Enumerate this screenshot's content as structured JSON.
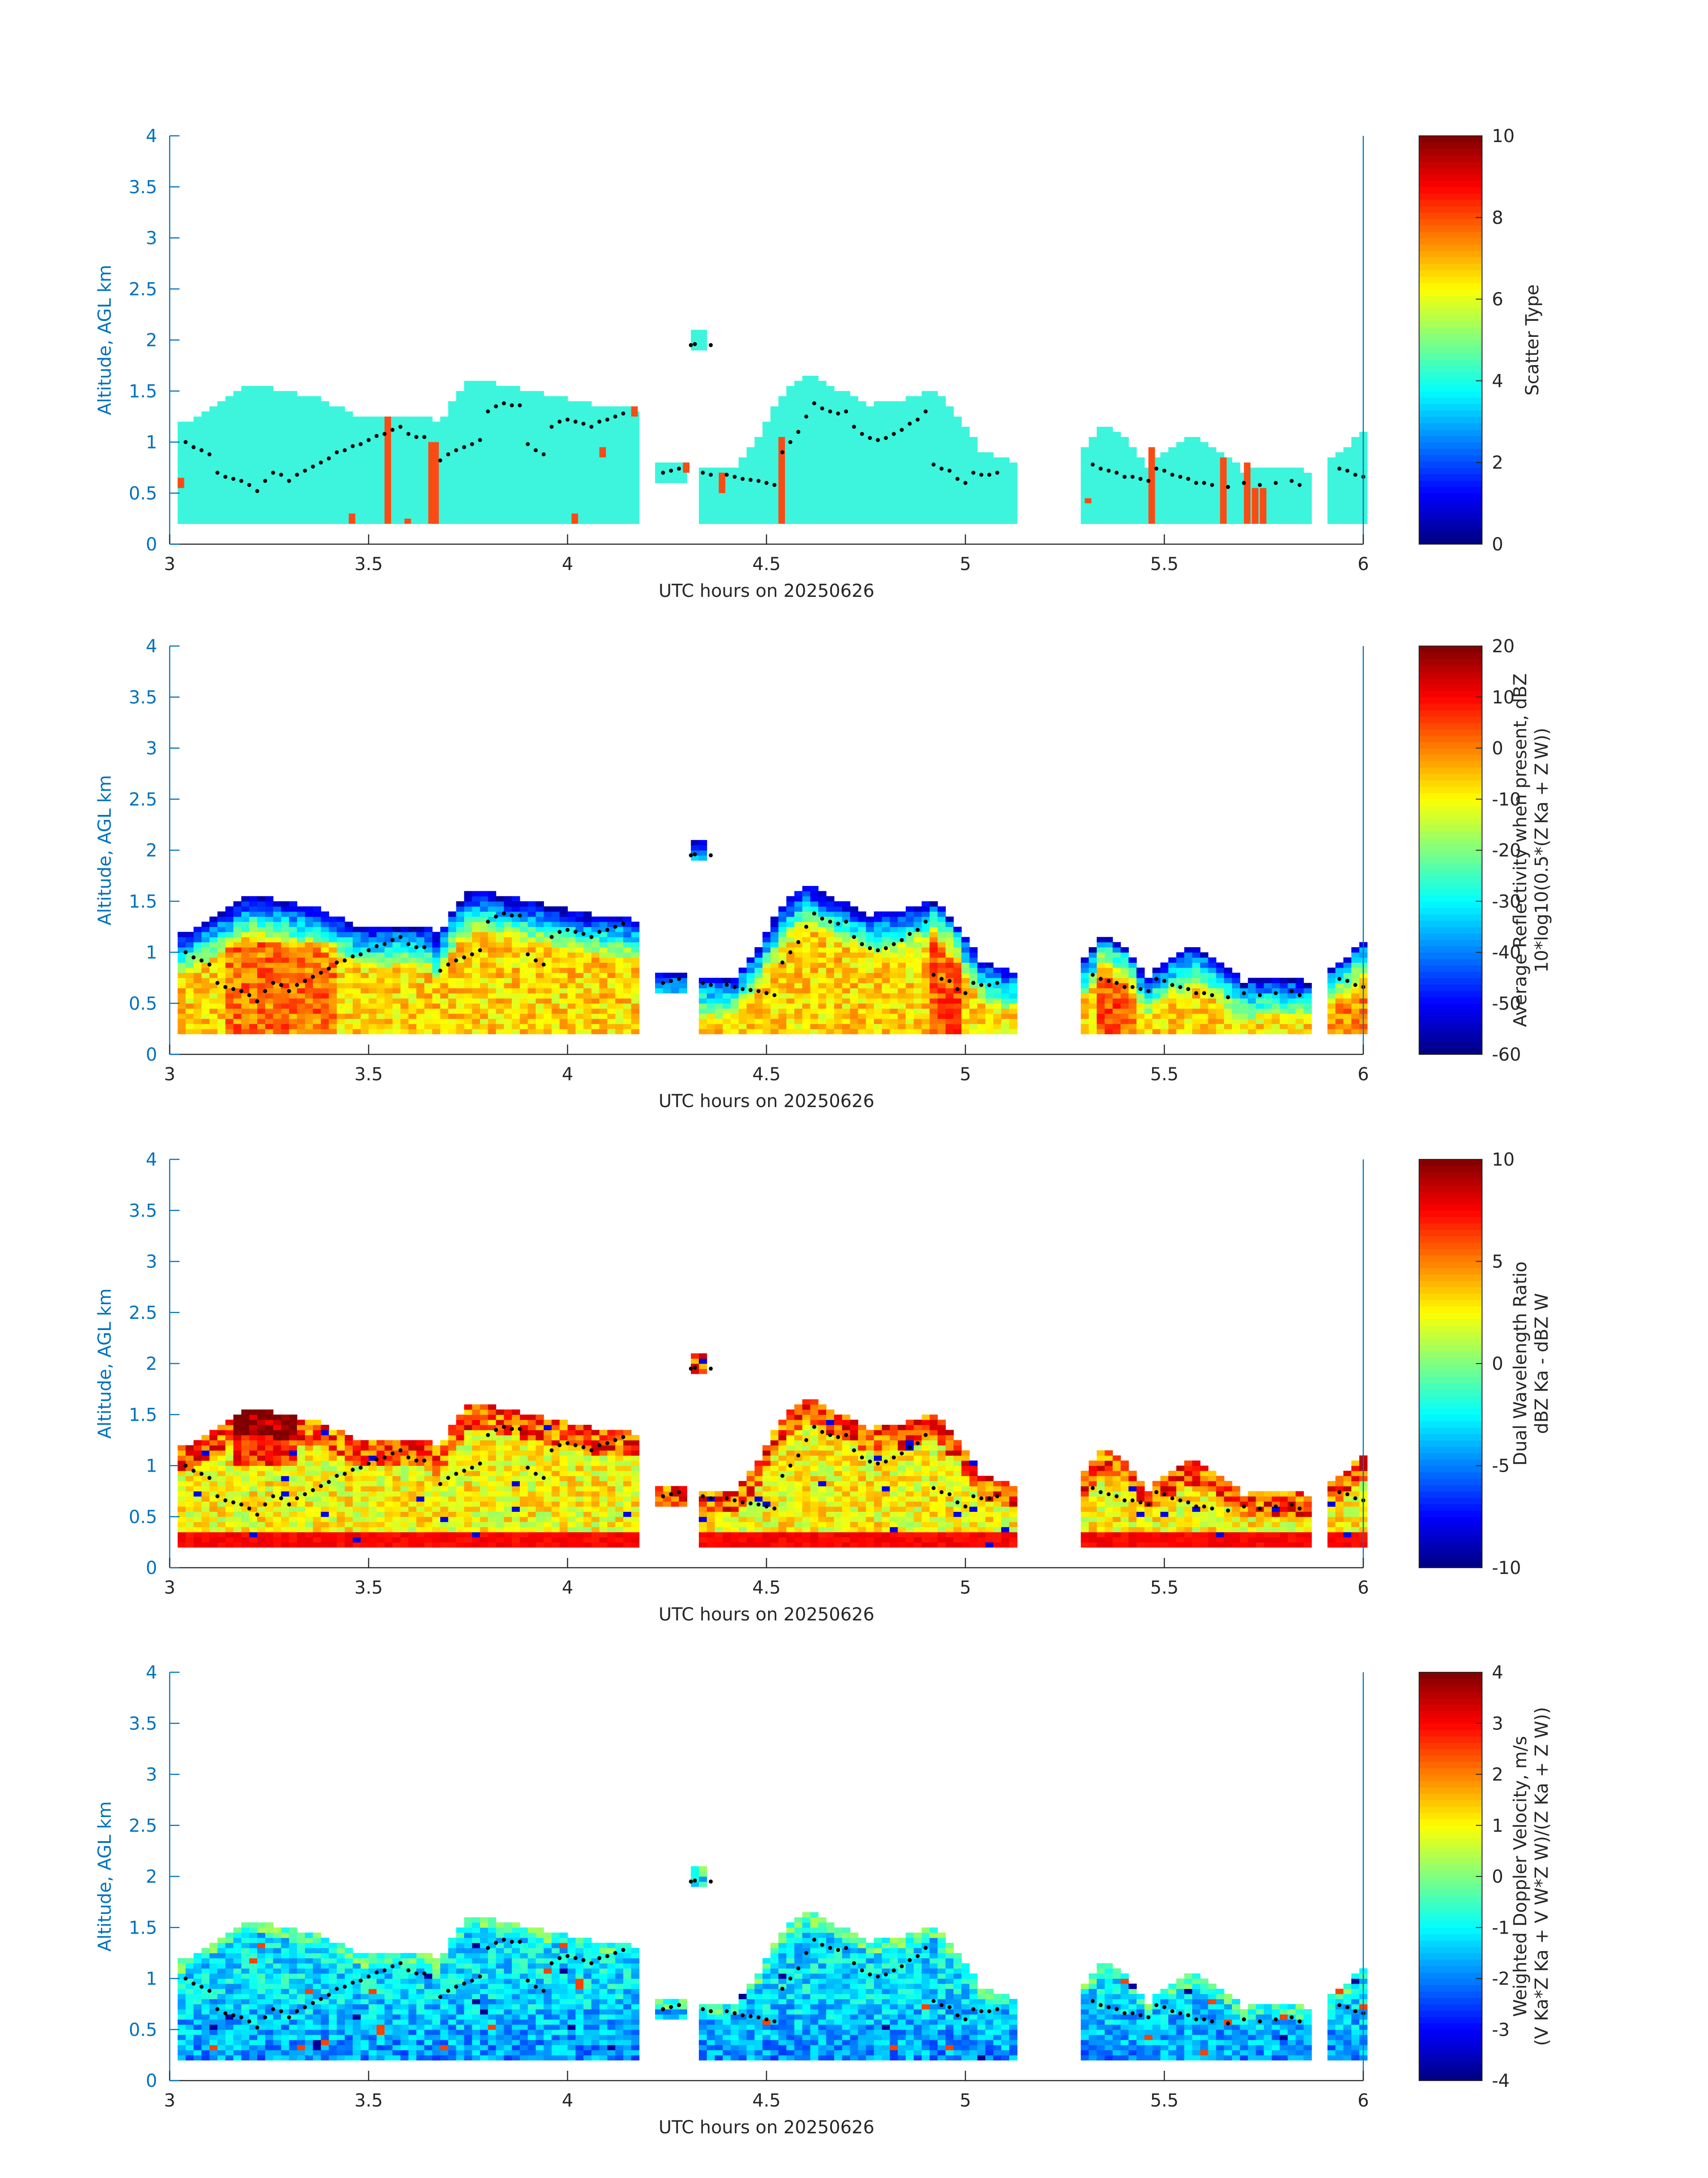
{
  "colors": {
    "axis": "#0072BD",
    "text": "#262626",
    "cloud_mask_cyan": "#3CF5DC",
    "scatter_orange": "#FA4B14",
    "background": "#ffffff",
    "marker": "#000000"
  },
  "chart_data": [
    {
      "type": "heatmap",
      "title": "",
      "xlabel": "UTC hours on 20250626",
      "ylabel": "Altitude, AGL km",
      "xlim": [
        3,
        6
      ],
      "ylim": [
        0,
        4
      ],
      "x_ticks": [
        "3",
        "3.5",
        "4",
        "4.5",
        "5",
        "5.5",
        "6"
      ],
      "y_ticks": [
        "0",
        "0.5",
        "1",
        "1.5",
        "2",
        "2.5",
        "3",
        "3.5",
        "4"
      ],
      "colorbar": {
        "label": [
          "Scatter Type"
        ],
        "range": [
          0,
          10
        ],
        "ticks": [
          "0",
          "2",
          "4",
          "6",
          "8",
          "10"
        ],
        "colormap": "jet"
      },
      "field": "scatter_type",
      "dominant_value": 4.0,
      "secondary_value": 8.4
    },
    {
      "type": "heatmap",
      "title": "",
      "xlabel": "UTC hours on 20250626",
      "ylabel": "Altitude, AGL km",
      "xlim": [
        3,
        6
      ],
      "ylim": [
        0,
        4
      ],
      "x_ticks": [
        "3",
        "3.5",
        "4",
        "4.5",
        "5",
        "5.5",
        "6"
      ],
      "y_ticks": [
        "0",
        "0.5",
        "1",
        "1.5",
        "2",
        "2.5",
        "3",
        "3.5",
        "4"
      ],
      "colorbar": {
        "label": [
          "Average Reflectivity when present, dBZ",
          "10*log10(0.5*(Z Ka + Z W))"
        ],
        "range": [
          -60,
          20
        ],
        "ticks": [
          "-60",
          "-50",
          "-40",
          "-30",
          "-20",
          "-10",
          "0",
          "10",
          "20"
        ],
        "colormap": "jet"
      },
      "field": "reflectivity"
    },
    {
      "type": "heatmap",
      "title": "",
      "xlabel": "UTC hours on 20250626",
      "ylabel": "Altitude, AGL km",
      "xlim": [
        3,
        6
      ],
      "ylim": [
        0,
        4
      ],
      "x_ticks": [
        "3",
        "3.5",
        "4",
        "4.5",
        "5",
        "5.5",
        "6"
      ],
      "y_ticks": [
        "0",
        "0.5",
        "1",
        "1.5",
        "2",
        "2.5",
        "3",
        "3.5",
        "4"
      ],
      "colorbar": {
        "label": [
          "Dual Wavelength Ratio",
          "dBZ Ka - dBZ W"
        ],
        "range": [
          -10,
          10
        ],
        "ticks": [
          "-10",
          "-5",
          "0",
          "5",
          "10"
        ],
        "colormap": "jet"
      },
      "field": "dwr"
    },
    {
      "type": "heatmap",
      "title": "",
      "xlabel": "UTC hours on 20250626",
      "ylabel": "Altitude, AGL km",
      "xlim": [
        3,
        6
      ],
      "ylim": [
        0,
        4
      ],
      "x_ticks": [
        "3",
        "3.5",
        "4",
        "4.5",
        "5",
        "5.5",
        "6"
      ],
      "y_ticks": [
        "0",
        "0.5",
        "1",
        "1.5",
        "2",
        "2.5",
        "3",
        "3.5",
        "4"
      ],
      "colorbar": {
        "label": [
          "Weighted Doppler Velocity, m/s",
          "(V Ka*Z Ka + V W*Z W)/(Z Ka + Z W))"
        ],
        "range": [
          -4,
          4
        ],
        "ticks": [
          "-4",
          "-3",
          "-2",
          "-1",
          "0",
          "1",
          "2",
          "3",
          "4"
        ],
        "colormap": "jet"
      },
      "field": "velocity"
    }
  ],
  "cloud_segments": [
    {
      "t0": 3.02,
      "t1": 3.67,
      "base": 0.2,
      "top": [
        [
          3.02,
          1.15
        ],
        [
          3.08,
          1.25
        ],
        [
          3.14,
          1.4
        ],
        [
          3.2,
          1.55
        ],
        [
          3.26,
          1.5
        ],
        [
          3.32,
          1.45
        ],
        [
          3.38,
          1.4
        ],
        [
          3.44,
          1.3
        ],
        [
          3.5,
          1.2
        ],
        [
          3.56,
          1.25
        ],
        [
          3.62,
          1.25
        ],
        [
          3.67,
          1.2
        ]
      ]
    },
    {
      "t0": 3.66,
      "t1": 4.17,
      "base": 0.2,
      "top": [
        [
          3.66,
          1.05
        ],
        [
          3.72,
          1.45
        ],
        [
          3.76,
          1.6
        ],
        [
          3.82,
          1.55
        ],
        [
          3.88,
          1.5
        ],
        [
          3.94,
          1.45
        ],
        [
          4.0,
          1.4
        ],
        [
          4.06,
          1.35
        ],
        [
          4.12,
          1.35
        ],
        [
          4.17,
          1.3
        ]
      ]
    },
    {
      "t0": 4.22,
      "t1": 4.3,
      "base": 0.6,
      "top": [
        [
          4.22,
          0.8
        ],
        [
          4.3,
          0.8
        ]
      ]
    },
    {
      "t0": 4.31,
      "t1": 4.34,
      "base": 1.9,
      "top": [
        [
          4.31,
          2.1
        ],
        [
          4.34,
          2.1
        ]
      ]
    },
    {
      "t0": 4.33,
      "t1": 5.12,
      "base": 0.2,
      "top": [
        [
          4.33,
          0.75
        ],
        [
          4.42,
          0.75
        ],
        [
          4.48,
          1.05
        ],
        [
          4.54,
          1.45
        ],
        [
          4.6,
          1.65
        ],
        [
          4.68,
          1.5
        ],
        [
          4.76,
          1.35
        ],
        [
          4.84,
          1.4
        ],
        [
          4.92,
          1.5
        ],
        [
          4.98,
          1.25
        ],
        [
          5.04,
          0.9
        ],
        [
          5.12,
          0.8
        ]
      ]
    },
    {
      "t0": 5.29,
      "t1": 5.86,
      "base": 0.2,
      "top": [
        [
          5.29,
          0.9
        ],
        [
          5.34,
          1.15
        ],
        [
          5.4,
          1.05
        ],
        [
          5.46,
          0.75
        ],
        [
          5.52,
          0.95
        ],
        [
          5.58,
          1.05
        ],
        [
          5.64,
          0.9
        ],
        [
          5.7,
          0.7
        ],
        [
          5.78,
          0.75
        ],
        [
          5.86,
          0.7
        ]
      ]
    },
    {
      "t0": 5.91,
      "t1": 6.0,
      "base": 0.2,
      "top": [
        [
          5.91,
          0.8
        ],
        [
          5.96,
          0.95
        ],
        [
          6.0,
          1.1
        ]
      ]
    }
  ],
  "marker_trace": [
    [
      3.04,
      1.0
    ],
    [
      3.06,
      0.95
    ],
    [
      3.08,
      0.92
    ],
    [
      3.1,
      0.88
    ],
    [
      3.12,
      0.7
    ],
    [
      3.14,
      0.66
    ],
    [
      3.16,
      0.64
    ],
    [
      3.18,
      0.62
    ],
    [
      3.2,
      0.58
    ],
    [
      3.22,
      0.52
    ],
    [
      3.24,
      0.62
    ],
    [
      3.26,
      0.7
    ],
    [
      3.28,
      0.68
    ],
    [
      3.3,
      0.62
    ],
    [
      3.32,
      0.68
    ],
    [
      3.34,
      0.72
    ],
    [
      3.36,
      0.76
    ],
    [
      3.38,
      0.8
    ],
    [
      3.4,
      0.84
    ],
    [
      3.42,
      0.9
    ],
    [
      3.44,
      0.92
    ],
    [
      3.46,
      0.96
    ],
    [
      3.48,
      0.98
    ],
    [
      3.5,
      1.02
    ],
    [
      3.52,
      1.06
    ],
    [
      3.54,
      1.08
    ],
    [
      3.56,
      1.12
    ],
    [
      3.58,
      1.15
    ],
    [
      3.6,
      1.08
    ],
    [
      3.62,
      1.05
    ],
    [
      3.64,
      1.05
    ],
    [
      3.68,
      0.82
    ],
    [
      3.7,
      0.88
    ],
    [
      3.72,
      0.92
    ],
    [
      3.74,
      0.95
    ],
    [
      3.76,
      0.98
    ],
    [
      3.78,
      1.02
    ],
    [
      3.8,
      1.3
    ],
    [
      3.82,
      1.35
    ],
    [
      3.84,
      1.38
    ],
    [
      3.86,
      1.36
    ],
    [
      3.88,
      1.36
    ],
    [
      3.9,
      0.98
    ],
    [
      3.92,
      0.92
    ],
    [
      3.94,
      0.88
    ],
    [
      3.96,
      1.15
    ],
    [
      3.98,
      1.2
    ],
    [
      4.0,
      1.22
    ],
    [
      4.02,
      1.2
    ],
    [
      4.04,
      1.18
    ],
    [
      4.06,
      1.15
    ],
    [
      4.08,
      1.2
    ],
    [
      4.1,
      1.22
    ],
    [
      4.12,
      1.25
    ],
    [
      4.14,
      1.28
    ],
    [
      4.24,
      0.7
    ],
    [
      4.26,
      0.72
    ],
    [
      4.28,
      0.74
    ],
    [
      4.31,
      1.95
    ],
    [
      4.32,
      1.96
    ],
    [
      4.36,
      1.95
    ],
    [
      4.34,
      0.7
    ],
    [
      4.36,
      0.68
    ],
    [
      4.4,
      0.68
    ],
    [
      4.42,
      0.66
    ],
    [
      4.44,
      0.64
    ],
    [
      4.46,
      0.63
    ],
    [
      4.48,
      0.62
    ],
    [
      4.5,
      0.6
    ],
    [
      4.52,
      0.58
    ],
    [
      4.54,
      0.9
    ],
    [
      4.56,
      1.0
    ],
    [
      4.58,
      1.1
    ],
    [
      4.6,
      1.25
    ],
    [
      4.62,
      1.38
    ],
    [
      4.64,
      1.33
    ],
    [
      4.66,
      1.3
    ],
    [
      4.68,
      1.28
    ],
    [
      4.7,
      1.3
    ],
    [
      4.72,
      1.15
    ],
    [
      4.74,
      1.08
    ],
    [
      4.76,
      1.04
    ],
    [
      4.78,
      1.02
    ],
    [
      4.8,
      1.04
    ],
    [
      4.82,
      1.08
    ],
    [
      4.84,
      1.12
    ],
    [
      4.86,
      1.18
    ],
    [
      4.88,
      1.22
    ],
    [
      4.9,
      1.3
    ],
    [
      4.92,
      0.78
    ],
    [
      4.94,
      0.74
    ],
    [
      4.96,
      0.72
    ],
    [
      4.98,
      0.64
    ],
    [
      5.0,
      0.6
    ],
    [
      5.02,
      0.7
    ],
    [
      5.04,
      0.68
    ],
    [
      5.06,
      0.68
    ],
    [
      5.08,
      0.7
    ],
    [
      5.32,
      0.78
    ],
    [
      5.34,
      0.74
    ],
    [
      5.36,
      0.72
    ],
    [
      5.38,
      0.7
    ],
    [
      5.4,
      0.66
    ],
    [
      5.42,
      0.66
    ],
    [
      5.44,
      0.64
    ],
    [
      5.46,
      0.62
    ],
    [
      5.48,
      0.74
    ],
    [
      5.5,
      0.72
    ],
    [
      5.52,
      0.68
    ],
    [
      5.54,
      0.66
    ],
    [
      5.56,
      0.64
    ],
    [
      5.58,
      0.6
    ],
    [
      5.6,
      0.6
    ],
    [
      5.62,
      0.58
    ],
    [
      5.66,
      0.56
    ],
    [
      5.7,
      0.6
    ],
    [
      5.74,
      0.58
    ],
    [
      5.78,
      0.6
    ],
    [
      5.82,
      0.62
    ],
    [
      5.84,
      0.58
    ],
    [
      5.94,
      0.74
    ],
    [
      5.96,
      0.72
    ],
    [
      5.98,
      0.68
    ],
    [
      6.0,
      0.66
    ]
  ],
  "scatter_bars": [
    [
      3.02,
      0.55,
      0.65
    ],
    [
      3.45,
      0.2,
      0.3
    ],
    [
      3.54,
      0.2,
      1.25
    ],
    [
      3.59,
      0.2,
      0.25
    ],
    [
      3.65,
      0.2,
      1.0
    ],
    [
      3.66,
      0.2,
      1.0
    ],
    [
      4.01,
      0.2,
      0.3
    ],
    [
      4.08,
      0.85,
      0.95
    ],
    [
      4.16,
      1.25,
      1.35
    ],
    [
      4.29,
      0.7,
      0.8
    ],
    [
      4.38,
      0.5,
      0.7
    ],
    [
      4.53,
      0.2,
      1.05
    ],
    [
      5.3,
      0.4,
      0.45
    ],
    [
      5.46,
      0.2,
      0.95
    ],
    [
      5.64,
      0.2,
      0.85
    ],
    [
      5.7,
      0.2,
      0.8
    ],
    [
      5.72,
      0.2,
      0.55
    ],
    [
      5.74,
      0.2,
      0.55
    ]
  ]
}
